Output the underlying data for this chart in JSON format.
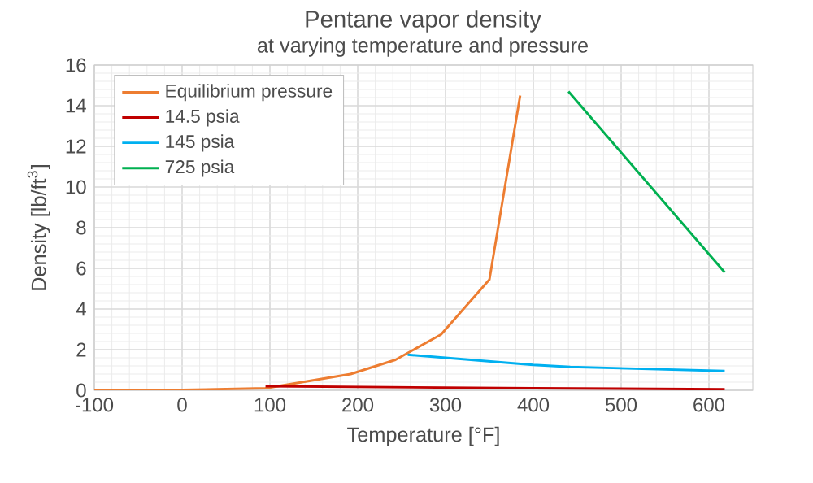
{
  "chart_data": {
    "type": "line",
    "title": "Pentane vapor density",
    "subtitle": "at varying temperature and pressure",
    "xlabel": "Temperature [°F]",
    "ylabel": "Density [lb/ft$^{3}$]",
    "xlim": [
      -100,
      650
    ],
    "xticks": [
      -100,
      0,
      100,
      200,
      300,
      400,
      500,
      600
    ],
    "ylim": [
      0,
      16
    ],
    "yticks": [
      0,
      2,
      4,
      6,
      8,
      10,
      12,
      14,
      16
    ],
    "grid": true,
    "legend": "top left",
    "marker": "none",
    "line_style": "solid",
    "series": [
      {
        "name": "Equilibrium pressure",
        "color": "#ed7d31",
        "x": [
          -100,
          0,
          95,
          192,
          243,
          295,
          350,
          385
        ],
        "values": [
          0,
          0.02,
          0.1,
          0.8,
          1.5,
          2.75,
          5.45,
          14.5
        ]
      },
      {
        "name": "14.5 psia",
        "color": "#c00000",
        "x": [
          95,
          400,
          618
        ],
        "values": [
          0.2,
          0.1,
          0.05
        ]
      },
      {
        "name": "145 psia",
        "color": "#00b0f0",
        "x": [
          257,
          400,
          442,
          618
        ],
        "values": [
          1.75,
          1.25,
          1.15,
          0.95
        ]
      },
      {
        "name": "725 psia",
        "color": "#00b050",
        "x": [
          440,
          618
        ],
        "values": [
          14.7,
          5.8
        ]
      }
    ]
  }
}
